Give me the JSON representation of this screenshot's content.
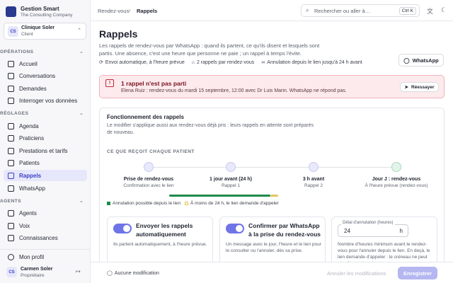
{
  "sidebar": {
    "brand": {
      "name": "Gestion Smart",
      "tagline": "The Consulting Company"
    },
    "account": {
      "initials": "CS",
      "name": "Clinique Soler",
      "role": "Client"
    },
    "sections": [
      {
        "title": "OPÉRATIONS",
        "items": [
          "Accueil",
          "Conversations",
          "Demandes",
          "Interroger vos données"
        ]
      },
      {
        "title": "RÉGLAGES",
        "items": [
          "Agenda",
          "Praticiens",
          "Prestations et tarifs",
          "Patients",
          "Rappels",
          "WhatsApp"
        ]
      },
      {
        "title": "AGENTS",
        "items": [
          "Agents",
          "Voix",
          "Connaissances"
        ]
      }
    ],
    "active": "Rappels",
    "profile": "Mon profil",
    "user": {
      "initials": "CS",
      "name": "Carmen Soler",
      "role": "Propriétaire"
    }
  },
  "topbar": {
    "breadcrumb": [
      "Rendez-vous",
      "Rappels"
    ],
    "search": "Rechercher ou aller à…",
    "shortcut": "Ctrl K"
  },
  "header": {
    "title": "Rappels",
    "description": "Les rappels de rendez-vous par WhatsApp : quand ils partent, ce qu'ils disent et lesquels sont partis. Une absence, c'est une heure que personne ne paie ; un rappel à temps l'évite.",
    "chips": [
      "Envoi automatique, à l'heure prévue",
      "2 rappels par rendez-vous",
      "Annulation depuis le lien jusqu'à 24 h avant"
    ],
    "button": "WhatsApp"
  },
  "alert": {
    "title": "1 rappel n'est pas parti",
    "message": "Elena Ruiz : rendez-vous du mardi 15 septembre, 12:00 avec Dr Luis Marin. WhatsApp ne répond pas.",
    "button": "Réessayer"
  },
  "card": {
    "title": "Fonctionnement des rappels",
    "description": "Le modifier s'applique aussi aux rendez-vous déjà pris : leurs rappels en attente sont préparés de nouveau.",
    "section": "CE QUE REÇOIT CHAQUE PATIENT",
    "steps": [
      {
        "label": "Prise de rendez-vous",
        "sub": "Confirmation avec le lien"
      },
      {
        "label": "1 jour avant (24 h)",
        "sub": "Rappel 1"
      },
      {
        "label": "3 h avant",
        "sub": "Rappel 2"
      },
      {
        "label": "Jour J : rendez-vous",
        "sub": "À l'heure prévue (rendez-vous)"
      }
    ],
    "legend": [
      "Annulation possible depuis le lien",
      "À moins de 24 h, le lien demande d'appeler"
    ],
    "options": [
      {
        "title": "Envoyer les rappels automatiquement",
        "text": "Ils partent automatiquement, à l'heure prévue."
      },
      {
        "title": "Confirmer par WhatsApp à la prise du rendez-vous",
        "text": "Un message avec le jour, l'heure et le lien pour le consulter ou l'annuler, dès sa prise."
      }
    ],
    "delay": {
      "label": "Délai d'annulation (heures)",
      "value": "24",
      "unit": "h",
      "text": "Nombre d'heures minimum avant le rendez-vous pour l'annuler depuis le lien. En deçà, le lien demande d'appeler : le créneau ne peut plus être redonné."
    }
  },
  "footer": {
    "status": "Aucune modification",
    "cancel": "Annuler les modifications",
    "save": "Enregistrer"
  }
}
